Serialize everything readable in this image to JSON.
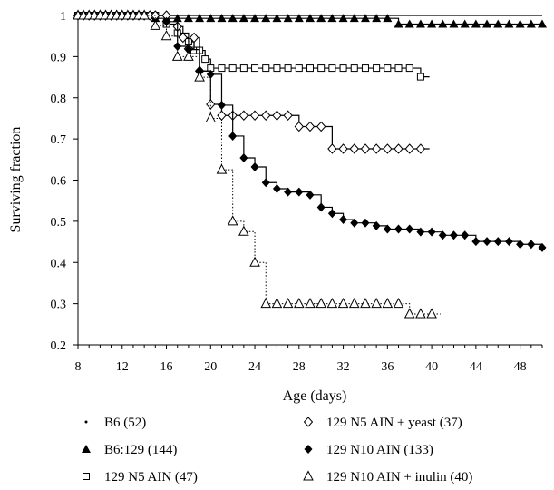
{
  "chart_data": {
    "type": "line",
    "subtype": "kaplan-meier survival curves",
    "title": "",
    "xlabel": "Age (days)",
    "ylabel": "Surviving fraction",
    "xlim": [
      8,
      50
    ],
    "ylim": [
      0.2,
      1.0
    ],
    "x_ticks": [
      8,
      12,
      16,
      20,
      24,
      28,
      32,
      36,
      40,
      44,
      48
    ],
    "x_tick_labels": [
      "8",
      "12",
      "16",
      "20",
      "24",
      "28",
      "32",
      "36",
      "40",
      "44",
      "48"
    ],
    "y_ticks": [
      0.2,
      0.3,
      0.4,
      0.5,
      0.6,
      0.7,
      0.8,
      0.9,
      1.0
    ],
    "y_tick_labels": [
      "0.2",
      "0.3",
      "0.4",
      "0.5",
      "0.6",
      "0.7",
      "0.8",
      "0.9",
      "1"
    ],
    "grid": false,
    "legend_position": "bottom",
    "series": [
      {
        "name": "B6 (52)",
        "marker": "dot",
        "line_style": "solid",
        "points": [
          [
            8,
            1.0
          ],
          [
            50,
            1.0
          ]
        ]
      },
      {
        "name": "B6:129 (144)",
        "marker": "triangle-filled",
        "line_style": "solid",
        "points": [
          [
            8,
            1.0
          ],
          [
            8.5,
            1.0
          ],
          [
            9,
            1.0
          ],
          [
            9.5,
            1.0
          ],
          [
            10,
            1.0
          ],
          [
            10.5,
            1.0
          ],
          [
            11,
            1.0
          ],
          [
            11.5,
            1.0
          ],
          [
            12,
            1.0
          ],
          [
            12.5,
            1.0
          ],
          [
            13,
            1.0
          ],
          [
            13.5,
            1.0
          ],
          [
            14,
            1.0
          ],
          [
            14.5,
            1.0
          ],
          [
            15,
            0.993
          ],
          [
            16,
            0.993
          ],
          [
            17,
            0.993
          ],
          [
            18,
            0.993
          ],
          [
            19,
            0.993
          ],
          [
            20,
            0.993
          ],
          [
            21,
            0.993
          ],
          [
            22,
            0.993
          ],
          [
            23,
            0.993
          ],
          [
            24,
            0.993
          ],
          [
            25,
            0.993
          ],
          [
            26,
            0.993
          ],
          [
            27,
            0.993
          ],
          [
            28,
            0.993
          ],
          [
            29,
            0.993
          ],
          [
            30,
            0.993
          ],
          [
            31,
            0.993
          ],
          [
            32,
            0.993
          ],
          [
            33,
            0.993
          ],
          [
            34,
            0.993
          ],
          [
            35,
            0.993
          ],
          [
            36,
            0.993
          ],
          [
            37,
            0.979
          ],
          [
            38,
            0.979
          ],
          [
            39,
            0.979
          ],
          [
            40,
            0.979
          ],
          [
            41,
            0.979
          ],
          [
            42,
            0.979
          ],
          [
            43,
            0.979
          ],
          [
            44,
            0.979
          ],
          [
            45,
            0.979
          ],
          [
            46,
            0.979
          ],
          [
            47,
            0.979
          ],
          [
            48,
            0.979
          ],
          [
            49,
            0.979
          ],
          [
            50,
            0.979
          ]
        ]
      },
      {
        "name": "129 N5 AIN (47)",
        "marker": "square-open",
        "line_style": "solid",
        "points": [
          [
            8,
            1.0
          ],
          [
            8.5,
            1.0
          ],
          [
            9,
            1.0
          ],
          [
            9.5,
            1.0
          ],
          [
            10,
            1.0
          ],
          [
            10.5,
            1.0
          ],
          [
            11,
            1.0
          ],
          [
            11.5,
            1.0
          ],
          [
            12,
            1.0
          ],
          [
            12.5,
            1.0
          ],
          [
            13,
            1.0
          ],
          [
            13.5,
            1.0
          ],
          [
            14,
            1.0
          ],
          [
            14.5,
            1.0
          ],
          [
            15,
            1.0
          ],
          [
            16,
            0.979
          ],
          [
            17,
            0.957
          ],
          [
            18,
            0.936
          ],
          [
            18.5,
            0.915
          ],
          [
            19,
            0.915
          ],
          [
            19.5,
            0.894
          ],
          [
            20,
            0.872
          ],
          [
            21,
            0.872
          ],
          [
            22,
            0.872
          ],
          [
            23,
            0.872
          ],
          [
            24,
            0.872
          ],
          [
            25,
            0.872
          ],
          [
            26,
            0.872
          ],
          [
            27,
            0.872
          ],
          [
            28,
            0.872
          ],
          [
            29,
            0.872
          ],
          [
            30,
            0.872
          ],
          [
            31,
            0.872
          ],
          [
            32,
            0.872
          ],
          [
            33,
            0.872
          ],
          [
            34,
            0.872
          ],
          [
            35,
            0.872
          ],
          [
            36,
            0.872
          ],
          [
            37,
            0.872
          ],
          [
            38,
            0.872
          ],
          [
            39,
            0.851
          ]
        ]
      },
      {
        "name": "129 N5 AIN + yeast (37)",
        "marker": "diamond-open",
        "line_style": "solid",
        "points": [
          [
            8,
            1.0
          ],
          [
            8.5,
            1.0
          ],
          [
            9,
            1.0
          ],
          [
            9.5,
            1.0
          ],
          [
            10,
            1.0
          ],
          [
            10.5,
            1.0
          ],
          [
            11,
            1.0
          ],
          [
            11.5,
            1.0
          ],
          [
            12,
            1.0
          ],
          [
            12.5,
            1.0
          ],
          [
            13,
            1.0
          ],
          [
            13.5,
            1.0
          ],
          [
            14,
            1.0
          ],
          [
            14.5,
            1.0
          ],
          [
            15,
            1.0
          ],
          [
            16,
            1.0
          ],
          [
            17,
            0.973
          ],
          [
            17.5,
            0.946
          ],
          [
            18,
            0.919
          ],
          [
            18.5,
            0.946
          ],
          [
            19,
            0.865
          ],
          [
            20,
            0.784
          ],
          [
            21,
            0.757
          ],
          [
            22,
            0.757
          ],
          [
            23,
            0.757
          ],
          [
            24,
            0.757
          ],
          [
            25,
            0.757
          ],
          [
            26,
            0.757
          ],
          [
            27,
            0.757
          ],
          [
            28,
            0.73
          ],
          [
            29,
            0.73
          ],
          [
            30,
            0.73
          ],
          [
            31,
            0.676
          ],
          [
            32,
            0.676
          ],
          [
            33,
            0.676
          ],
          [
            34,
            0.676
          ],
          [
            35,
            0.676
          ],
          [
            36,
            0.676
          ],
          [
            37,
            0.676
          ],
          [
            38,
            0.676
          ],
          [
            39,
            0.676
          ]
        ]
      },
      {
        "name": "129 N10 AIN (133)",
        "marker": "diamond-filled",
        "line_style": "solid",
        "points": [
          [
            16,
            0.985
          ],
          [
            17,
            0.925
          ],
          [
            18,
            0.917
          ],
          [
            19,
            0.865
          ],
          [
            20,
            0.857
          ],
          [
            21,
            0.782
          ],
          [
            22,
            0.707
          ],
          [
            23,
            0.654
          ],
          [
            24,
            0.632
          ],
          [
            25,
            0.594
          ],
          [
            26,
            0.579
          ],
          [
            27,
            0.571
          ],
          [
            28,
            0.571
          ],
          [
            29,
            0.564
          ],
          [
            30,
            0.534
          ],
          [
            31,
            0.519
          ],
          [
            32,
            0.504
          ],
          [
            33,
            0.496
          ],
          [
            34,
            0.496
          ],
          [
            35,
            0.489
          ],
          [
            36,
            0.481
          ],
          [
            37,
            0.481
          ],
          [
            38,
            0.481
          ],
          [
            39,
            0.474
          ],
          [
            40,
            0.474
          ],
          [
            41,
            0.466
          ],
          [
            42,
            0.466
          ],
          [
            43,
            0.466
          ],
          [
            44,
            0.451
          ],
          [
            45,
            0.451
          ],
          [
            46,
            0.451
          ],
          [
            47,
            0.451
          ],
          [
            48,
            0.444
          ],
          [
            49,
            0.444
          ],
          [
            50,
            0.436
          ]
        ]
      },
      {
        "name": "129 N10 AIN + inulin (40)",
        "marker": "triangle-open",
        "line_style": "dotted",
        "points": [
          [
            8,
            1.0
          ],
          [
            8.5,
            1.0
          ],
          [
            9,
            1.0
          ],
          [
            9.5,
            1.0
          ],
          [
            10,
            1.0
          ],
          [
            10.5,
            1.0
          ],
          [
            11,
            1.0
          ],
          [
            11.5,
            1.0
          ],
          [
            12,
            1.0
          ],
          [
            12.5,
            1.0
          ],
          [
            13,
            1.0
          ],
          [
            13.5,
            1.0
          ],
          [
            14,
            1.0
          ],
          [
            15,
            0.975
          ],
          [
            16,
            0.95
          ],
          [
            17,
            0.9
          ],
          [
            18,
            0.9
          ],
          [
            19,
            0.85
          ],
          [
            20,
            0.75
          ],
          [
            21,
            0.625
          ],
          [
            22,
            0.5
          ],
          [
            23,
            0.475
          ],
          [
            24,
            0.4
          ],
          [
            25,
            0.3
          ],
          [
            26,
            0.3
          ],
          [
            27,
            0.3
          ],
          [
            28,
            0.3
          ],
          [
            29,
            0.3
          ],
          [
            30,
            0.3
          ],
          [
            31,
            0.3
          ],
          [
            32,
            0.3
          ],
          [
            33,
            0.3
          ],
          [
            34,
            0.3
          ],
          [
            35,
            0.3
          ],
          [
            36,
            0.3
          ],
          [
            37,
            0.3
          ],
          [
            38,
            0.275
          ],
          [
            39,
            0.275
          ],
          [
            40,
            0.275
          ]
        ]
      }
    ]
  }
}
